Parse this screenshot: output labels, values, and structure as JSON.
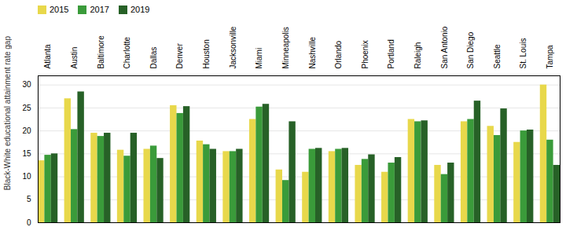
{
  "chart_data": {
    "type": "bar",
    "categories": [
      "Atlanta",
      "Austin",
      "Baltimore",
      "Charlotte",
      "Dallas",
      "Denver",
      "Houston",
      "Jacksonville",
      "Miami",
      "Minneapolis",
      "Nashville",
      "Orlando",
      "Phoenix",
      "Portland",
      "Raleigh",
      "San Antonio",
      "San Diego",
      "Seattle",
      "St. Louis",
      "Tampa"
    ],
    "series": [
      {
        "name": "2015",
        "color": "#e8d84b",
        "values": [
          13.5,
          27.0,
          19.5,
          15.8,
          16.0,
          25.5,
          17.8,
          15.5,
          22.5,
          11.5,
          11.0,
          15.5,
          12.5,
          11.0,
          22.5,
          12.5,
          22.0,
          21.0,
          17.5,
          30.0
        ]
      },
      {
        "name": "2017",
        "color": "#3a9b3a",
        "values": [
          14.7,
          20.3,
          18.8,
          14.5,
          16.7,
          23.8,
          17.0,
          15.5,
          25.2,
          9.2,
          16.0,
          16.0,
          13.8,
          13.0,
          22.0,
          10.5,
          22.5,
          19.0,
          20.0,
          18.0
        ]
      },
      {
        "name": "2019",
        "color": "#276127",
        "values": [
          15.0,
          28.5,
          19.5,
          19.5,
          14.0,
          25.3,
          16.0,
          16.0,
          25.8,
          22.0,
          16.2,
          16.2,
          14.8,
          14.2,
          22.2,
          13.0,
          26.5,
          24.8,
          20.2,
          12.5
        ]
      }
    ],
    "ylabel": "Black-White educational attainment rate gap",
    "ylim": [
      0,
      32
    ],
    "yticks": [
      0,
      5,
      10,
      15,
      20,
      25,
      30
    ],
    "grid": true,
    "legend": "upper left"
  }
}
